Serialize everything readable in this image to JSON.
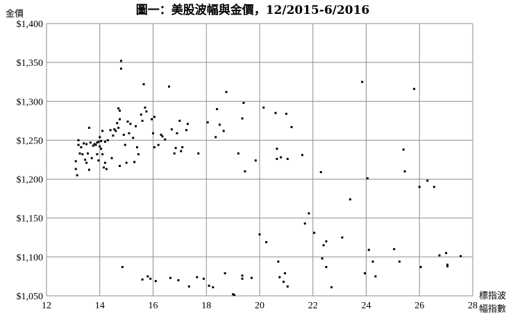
{
  "chart_data": {
    "type": "scatter",
    "title": "圖一：美股波幅與金價，12/2015-6/2016",
    "ylabel": "金價",
    "xlabel_line1": "標指波",
    "xlabel_line2": "幅指數",
    "xlim": [
      12,
      28
    ],
    "ylim": [
      1050,
      1400
    ],
    "x_ticks": [
      12,
      14,
      16,
      18,
      20,
      22,
      24,
      26,
      28
    ],
    "y_ticks": [
      1050,
      1100,
      1150,
      1200,
      1250,
      1300,
      1350,
      1400
    ],
    "x_tick_labels": [
      "12",
      "14",
      "16",
      "18",
      "20",
      "22",
      "24",
      "26",
      "28"
    ],
    "y_tick_labels": [
      "$1,050",
      "$1,100",
      "$1,150",
      "$1,200",
      "$1,250",
      "$1,300",
      "$1,350",
      "$1,400"
    ],
    "grid": true,
    "marker_color": "#000000",
    "points": [
      [
        13.1,
        1223
      ],
      [
        13.1,
        1213
      ],
      [
        13.15,
        1205
      ],
      [
        13.2,
        1250
      ],
      [
        13.2,
        1244
      ],
      [
        13.25,
        1233
      ],
      [
        13.3,
        1241
      ],
      [
        13.35,
        1232
      ],
      [
        13.4,
        1246
      ],
      [
        13.45,
        1225
      ],
      [
        13.5,
        1245
      ],
      [
        13.5,
        1221
      ],
      [
        13.55,
        1233
      ],
      [
        13.6,
        1266
      ],
      [
        13.6,
        1212
      ],
      [
        13.65,
        1247
      ],
      [
        13.7,
        1227
      ],
      [
        13.75,
        1243
      ],
      [
        13.8,
        1245
      ],
      [
        13.85,
        1244
      ],
      [
        13.9,
        1247
      ],
      [
        13.9,
        1232
      ],
      [
        13.95,
        1248
      ],
      [
        13.95,
        1224
      ],
      [
        14.0,
        1242
      ],
      [
        14.0,
        1254
      ],
      [
        14.05,
        1239
      ],
      [
        14.05,
        1249
      ],
      [
        14.1,
        1262
      ],
      [
        14.1,
        1232
      ],
      [
        14.15,
        1215
      ],
      [
        14.2,
        1221
      ],
      [
        14.2,
        1248
      ],
      [
        14.25,
        1213
      ],
      [
        14.3,
        1250
      ],
      [
        14.4,
        1263
      ],
      [
        14.45,
        1227
      ],
      [
        14.5,
        1256
      ],
      [
        14.55,
        1264
      ],
      [
        14.6,
        1262
      ],
      [
        14.65,
        1272
      ],
      [
        14.7,
        1291
      ],
      [
        14.7,
        1266
      ],
      [
        14.75,
        1277
      ],
      [
        14.75,
        1288
      ],
      [
        14.75,
        1217
      ],
      [
        14.8,
        1352
      ],
      [
        14.8,
        1342
      ],
      [
        14.85,
        1087
      ],
      [
        14.9,
        1257
      ],
      [
        14.95,
        1244
      ],
      [
        15.0,
        1221
      ],
      [
        15.05,
        1274
      ],
      [
        15.1,
        1259
      ],
      [
        15.15,
        1271
      ],
      [
        15.25,
        1253
      ],
      [
        15.3,
        1222
      ],
      [
        15.35,
        1268
      ],
      [
        15.4,
        1241
      ],
      [
        15.45,
        1232
      ],
      [
        15.55,
        1283
      ],
      [
        15.6,
        1275
      ],
      [
        15.6,
        1071
      ],
      [
        15.65,
        1322
      ],
      [
        15.7,
        1292
      ],
      [
        15.75,
        1287
      ],
      [
        15.8,
        1075
      ],
      [
        15.9,
        1072
      ],
      [
        15.95,
        1277
      ],
      [
        16.0,
        1259
      ],
      [
        16.05,
        1241
      ],
      [
        16.05,
        1280
      ],
      [
        16.1,
        1069
      ],
      [
        16.2,
        1244
      ],
      [
        16.3,
        1257
      ],
      [
        16.35,
        1255
      ],
      [
        16.45,
        1251
      ],
      [
        16.6,
        1319
      ],
      [
        16.65,
        1073
      ],
      [
        16.7,
        1264
      ],
      [
        16.8,
        1233
      ],
      [
        16.85,
        1240
      ],
      [
        16.9,
        1259
      ],
      [
        16.95,
        1070
      ],
      [
        17.0,
        1275
      ],
      [
        17.05,
        1236
      ],
      [
        17.1,
        1241
      ],
      [
        17.25,
        1263
      ],
      [
        17.3,
        1271
      ],
      [
        17.35,
        1062
      ],
      [
        17.65,
        1074
      ],
      [
        17.7,
        1233
      ],
      [
        17.9,
        1072
      ],
      [
        18.05,
        1273
      ],
      [
        18.1,
        1063
      ],
      [
        18.25,
        1061
      ],
      [
        18.35,
        1254
      ],
      [
        18.4,
        1290
      ],
      [
        18.5,
        1270
      ],
      [
        18.65,
        1262
      ],
      [
        18.7,
        1079
      ],
      [
        18.75,
        1312
      ],
      [
        19.0,
        1052
      ],
      [
        19.05,
        1051
      ],
      [
        19.2,
        1233
      ],
      [
        19.35,
        1278
      ],
      [
        19.35,
        1072
      ],
      [
        19.35,
        1076
      ],
      [
        19.4,
        1298
      ],
      [
        19.45,
        1210
      ],
      [
        19.7,
        1073
      ],
      [
        19.85,
        1224
      ],
      [
        20.0,
        1129
      ],
      [
        20.15,
        1292
      ],
      [
        20.25,
        1119
      ],
      [
        20.6,
        1285
      ],
      [
        20.65,
        1239
      ],
      [
        20.65,
        1226
      ],
      [
        20.7,
        1094
      ],
      [
        20.75,
        1074
      ],
      [
        20.8,
        1228
      ],
      [
        20.9,
        1068
      ],
      [
        20.95,
        1079
      ],
      [
        21.0,
        1284
      ],
      [
        21.05,
        1226
      ],
      [
        21.05,
        1062
      ],
      [
        21.2,
        1267
      ],
      [
        21.6,
        1231
      ],
      [
        21.7,
        1143
      ],
      [
        21.85,
        1156
      ],
      [
        22.05,
        1131
      ],
      [
        22.3,
        1209
      ],
      [
        22.35,
        1098
      ],
      [
        22.4,
        1115
      ],
      [
        22.5,
        1087
      ],
      [
        22.5,
        1120
      ],
      [
        22.7,
        1061
      ],
      [
        23.1,
        1125
      ],
      [
        23.4,
        1174
      ],
      [
        23.85,
        1325
      ],
      [
        23.95,
        1079
      ],
      [
        24.05,
        1201
      ],
      [
        24.1,
        1109
      ],
      [
        24.25,
        1094
      ],
      [
        24.35,
        1075
      ],
      [
        25.05,
        1110
      ],
      [
        25.25,
        1094
      ],
      [
        25.4,
        1238
      ],
      [
        25.45,
        1210
      ],
      [
        25.8,
        1316
      ],
      [
        26.0,
        1190
      ],
      [
        26.05,
        1087
      ],
      [
        26.3,
        1198
      ],
      [
        26.55,
        1190
      ],
      [
        26.75,
        1102
      ],
      [
        27.0,
        1105
      ],
      [
        27.05,
        1090
      ],
      [
        27.05,
        1088
      ],
      [
        27.55,
        1101
      ]
    ]
  }
}
